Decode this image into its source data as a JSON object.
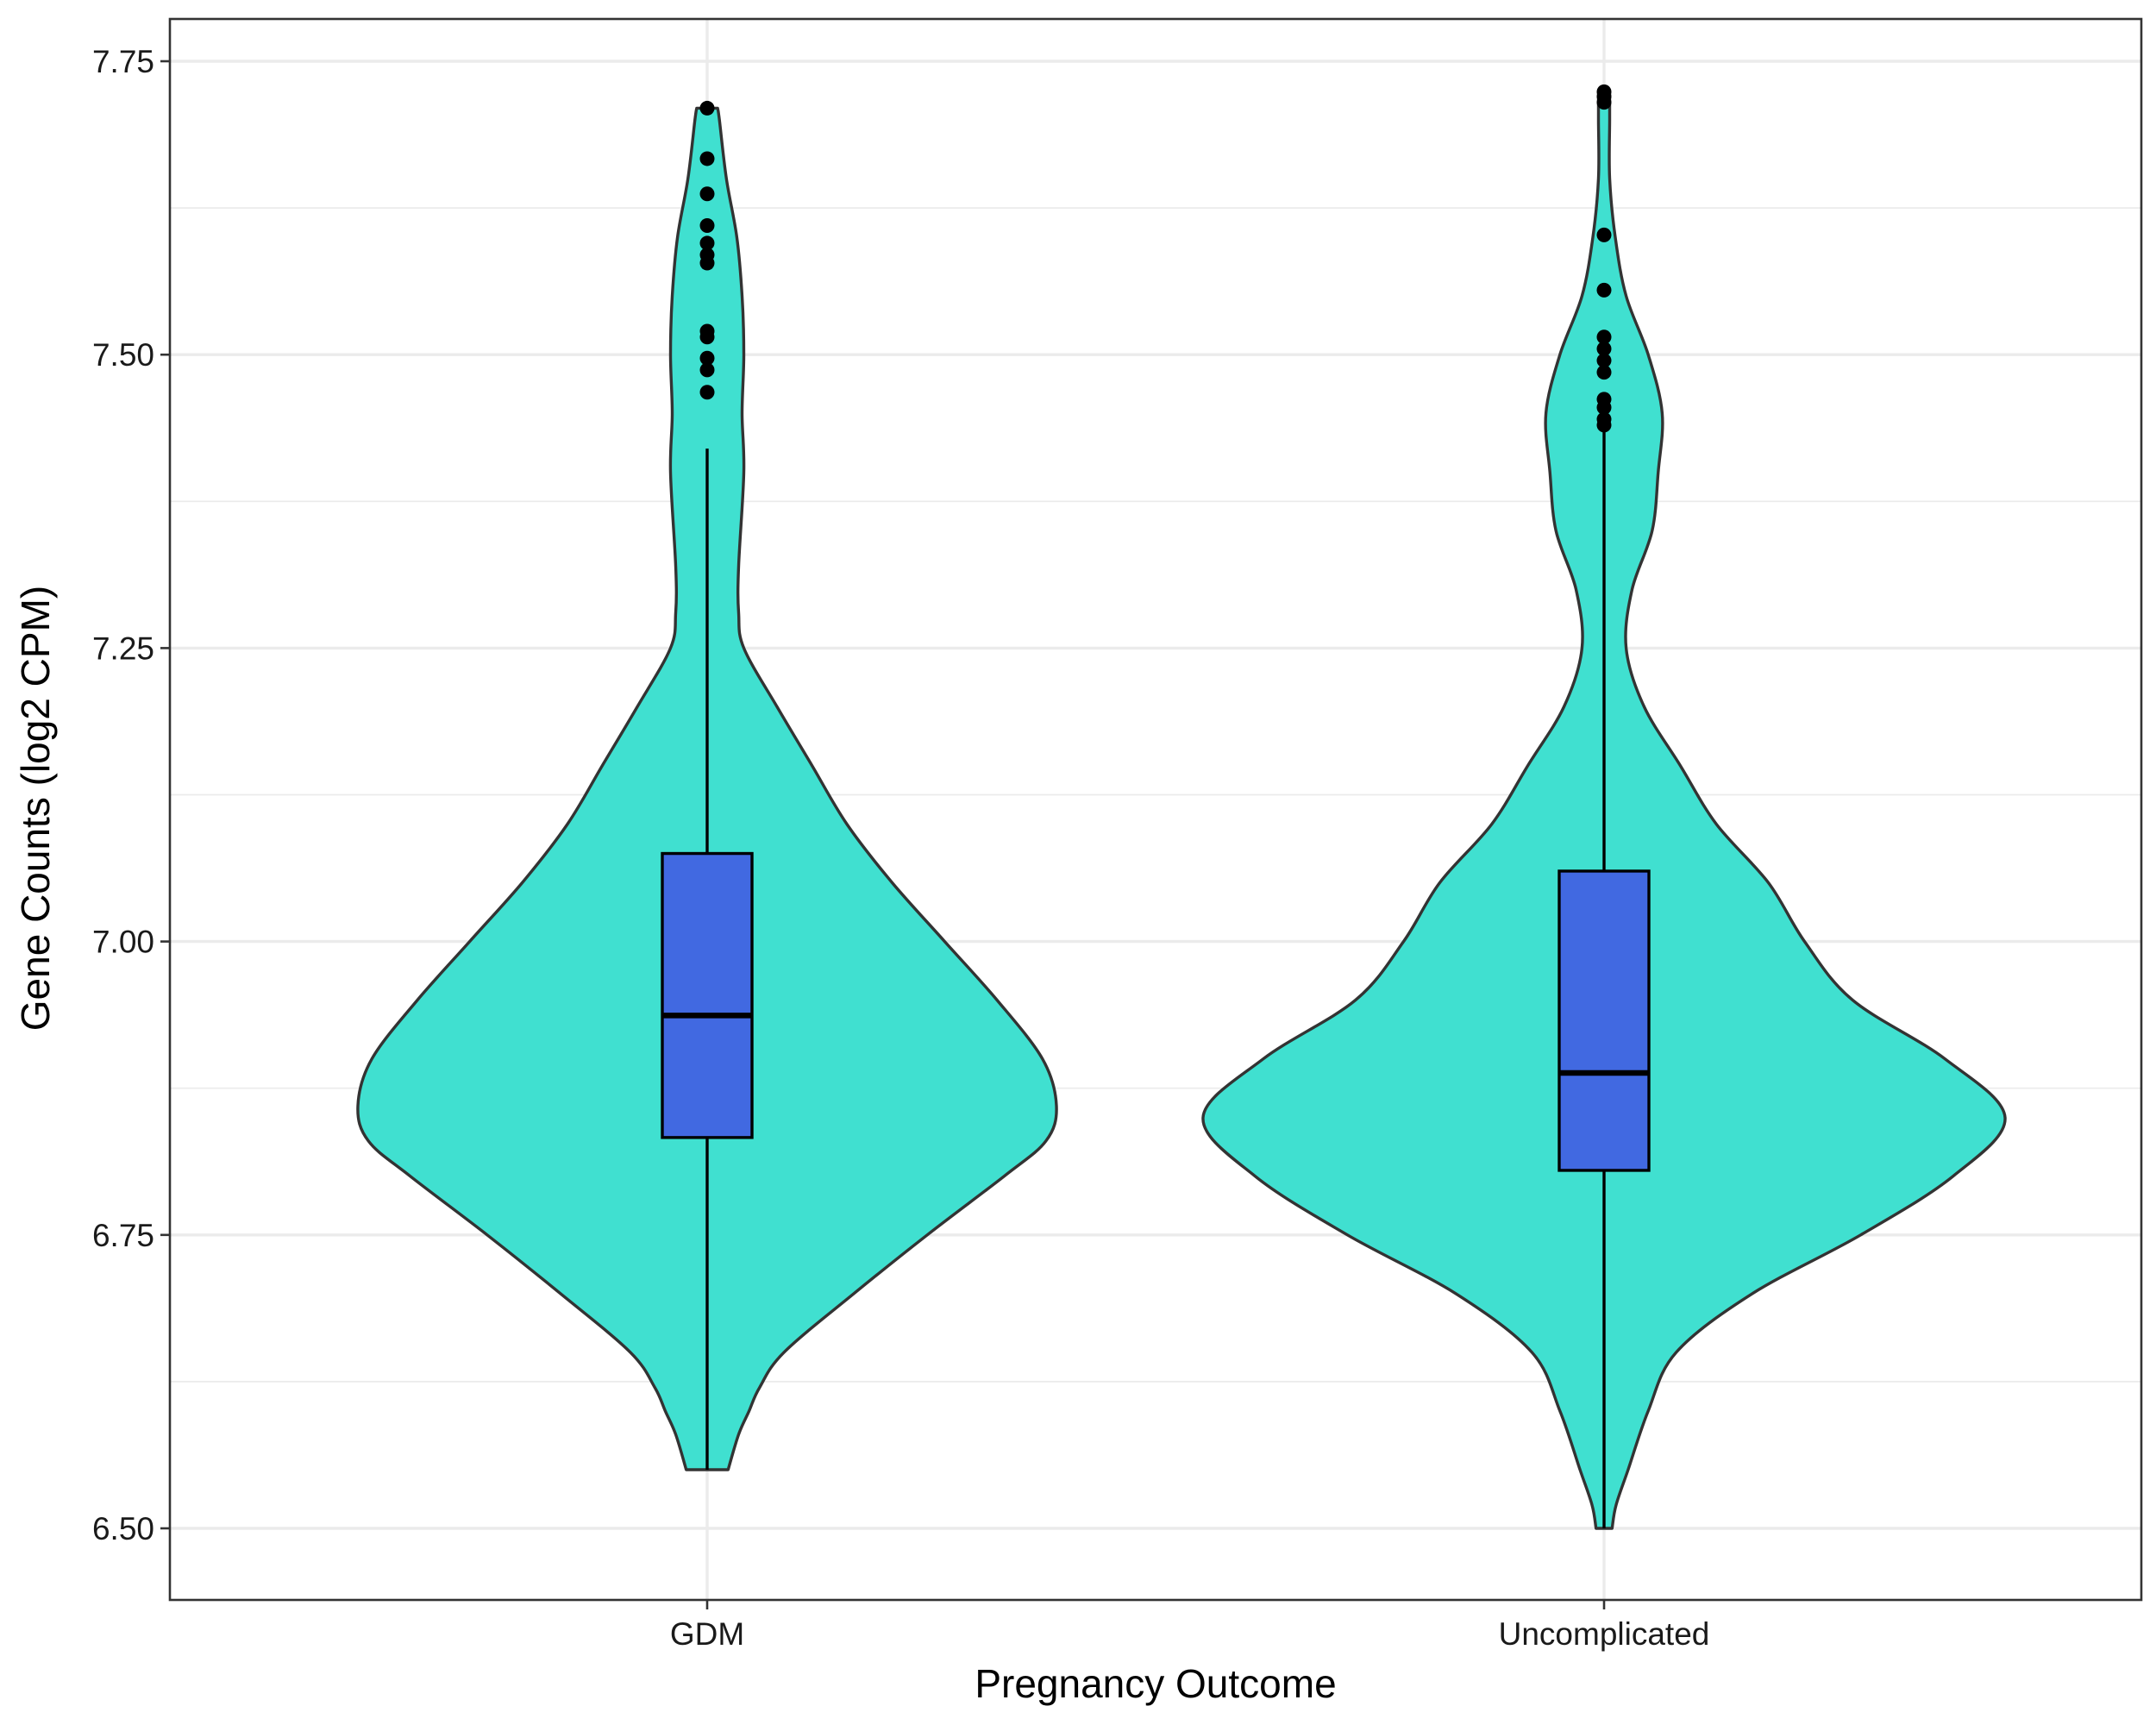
{
  "chart_data": {
    "type": "violin",
    "title": "",
    "xlabel": "Pregnancy Outcome",
    "ylabel": "Gene Counts (log2 CPM)",
    "ylim": [
      6.44,
      7.785
    ],
    "yticks": [
      6.5,
      6.75,
      7.0,
      7.25,
      7.5,
      7.75
    ],
    "ytick_labels": [
      "6.50",
      "6.75",
      "7.00",
      "7.25",
      "7.50",
      "7.75"
    ],
    "yminor": [
      6.625,
      6.875,
      7.125,
      7.375,
      7.625
    ],
    "grid": true,
    "legend": "none",
    "categories": [
      "GDM",
      "Uncomplicated"
    ],
    "colors": {
      "violin_fill": "#40E0D0",
      "box_fill": "#4169E1",
      "outline": "#333333",
      "points": "#000000"
    },
    "groups": [
      {
        "name": "GDM",
        "box": {
          "lower_whisker": 6.55,
          "q1": 6.833,
          "median": 6.937,
          "q3": 7.075,
          "upper_whisker": 7.42
        },
        "outliers": [
          7.468,
          7.487,
          7.497,
          7.515,
          7.52,
          7.578,
          7.585,
          7.595,
          7.61,
          7.637,
          7.667,
          7.71
        ],
        "density": [
          [
            6.55,
            0.06
          ],
          [
            6.58,
            0.09
          ],
          [
            6.6,
            0.12
          ],
          [
            6.62,
            0.15
          ],
          [
            6.65,
            0.22
          ],
          [
            6.7,
            0.42
          ],
          [
            6.75,
            0.63
          ],
          [
            6.8,
            0.85
          ],
          [
            6.83,
            0.97
          ],
          [
            6.86,
            1.0
          ],
          [
            6.9,
            0.96
          ],
          [
            6.95,
            0.83
          ],
          [
            7.0,
            0.68
          ],
          [
            7.05,
            0.53
          ],
          [
            7.1,
            0.4
          ],
          [
            7.15,
            0.3
          ],
          [
            7.2,
            0.2
          ],
          [
            7.25,
            0.105
          ],
          [
            7.28,
            0.09
          ],
          [
            7.32,
            0.09
          ],
          [
            7.4,
            0.105
          ],
          [
            7.45,
            0.1
          ],
          [
            7.5,
            0.105
          ],
          [
            7.55,
            0.1
          ],
          [
            7.6,
            0.085
          ],
          [
            7.65,
            0.055
          ],
          [
            7.7,
            0.035
          ],
          [
            7.71,
            0.03
          ]
        ]
      },
      {
        "name": "Uncomplicated",
        "box": {
          "lower_whisker": 6.5,
          "q1": 6.805,
          "median": 6.888,
          "q3": 7.06,
          "upper_whisker": 7.44
        },
        "outliers": [
          7.44,
          7.445,
          7.455,
          7.462,
          7.485,
          7.495,
          7.505,
          7.515,
          7.555,
          7.602,
          7.715,
          7.72,
          7.724
        ],
        "density": [
          [
            6.5,
            0.02
          ],
          [
            6.52,
            0.03
          ],
          [
            6.55,
            0.06
          ],
          [
            6.6,
            0.11
          ],
          [
            6.65,
            0.18
          ],
          [
            6.7,
            0.37
          ],
          [
            6.75,
            0.64
          ],
          [
            6.8,
            0.87
          ],
          [
            6.85,
            1.0
          ],
          [
            6.9,
            0.85
          ],
          [
            6.95,
            0.62
          ],
          [
            7.0,
            0.5
          ],
          [
            7.05,
            0.41
          ],
          [
            7.1,
            0.28
          ],
          [
            7.15,
            0.19
          ],
          [
            7.2,
            0.1
          ],
          [
            7.25,
            0.055
          ],
          [
            7.3,
            0.07
          ],
          [
            7.35,
            0.12
          ],
          [
            7.4,
            0.135
          ],
          [
            7.45,
            0.145
          ],
          [
            7.5,
            0.11
          ],
          [
            7.55,
            0.055
          ],
          [
            7.6,
            0.028
          ],
          [
            7.65,
            0.014
          ],
          [
            7.7,
            0.014
          ],
          [
            7.724,
            0.014
          ]
        ]
      }
    ]
  }
}
